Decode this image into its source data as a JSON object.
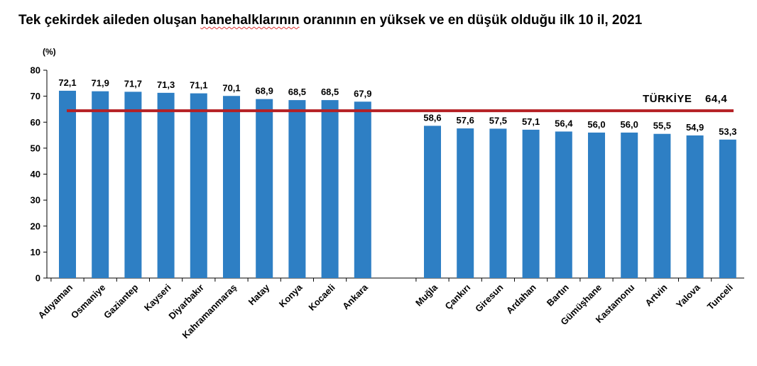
{
  "title_part1": "Tek çekirdek aileden oluşan ",
  "title_part2": "hanehalklarının",
  "title_part3": " oranının en yüksek ve en düşük olduğu ilk 10 il, 2021",
  "colors": {
    "bar": "#2e7fc4",
    "reference_line": "#b52024",
    "axis": "#000000"
  },
  "chart_data": {
    "type": "bar",
    "title": "Tek çekirdek aileden oluşan hanehalklarının oranının en yüksek ve en düşük olduğu ilk 10 il, 2021",
    "ylabel": "(%)",
    "xlabel": "",
    "ylim": [
      0,
      80
    ],
    "yticks": [
      0,
      10,
      20,
      30,
      40,
      50,
      60,
      70,
      80
    ],
    "grid": false,
    "groups": [
      {
        "categories": [
          "Adıyaman",
          "Osmaniye",
          "Gaziantep",
          "Kayseri",
          "Diyarbakır",
          "Kahramanmaraş",
          "Hatay",
          "Konya",
          "Kocaeli",
          "Ankara"
        ],
        "values": [
          72.1,
          71.9,
          71.7,
          71.3,
          71.1,
          70.1,
          68.9,
          68.5,
          68.5,
          67.9
        ],
        "labels": [
          "72,1",
          "71,9",
          "71,7",
          "71,3",
          "71,1",
          "70,1",
          "68,9",
          "68,5",
          "68,5",
          "67,9"
        ]
      },
      {
        "categories": [
          "Muğla",
          "Çankırı",
          "Giresun",
          "Ardahan",
          "Bartın",
          "Gümüşhane",
          "Kastamonu",
          "Artvin",
          "Yalova",
          "Tunceli"
        ],
        "values": [
          58.6,
          57.6,
          57.5,
          57.1,
          56.4,
          56.0,
          56.0,
          55.5,
          54.9,
          53.3
        ],
        "labels": [
          "58,6",
          "57,6",
          "57,5",
          "57,1",
          "56,4",
          "56,0",
          "56,0",
          "55,5",
          "54,9",
          "53,3"
        ]
      }
    ],
    "reference_line": {
      "value": 64.4,
      "label": "TÜRKİYE",
      "label_value": "64,4"
    }
  }
}
